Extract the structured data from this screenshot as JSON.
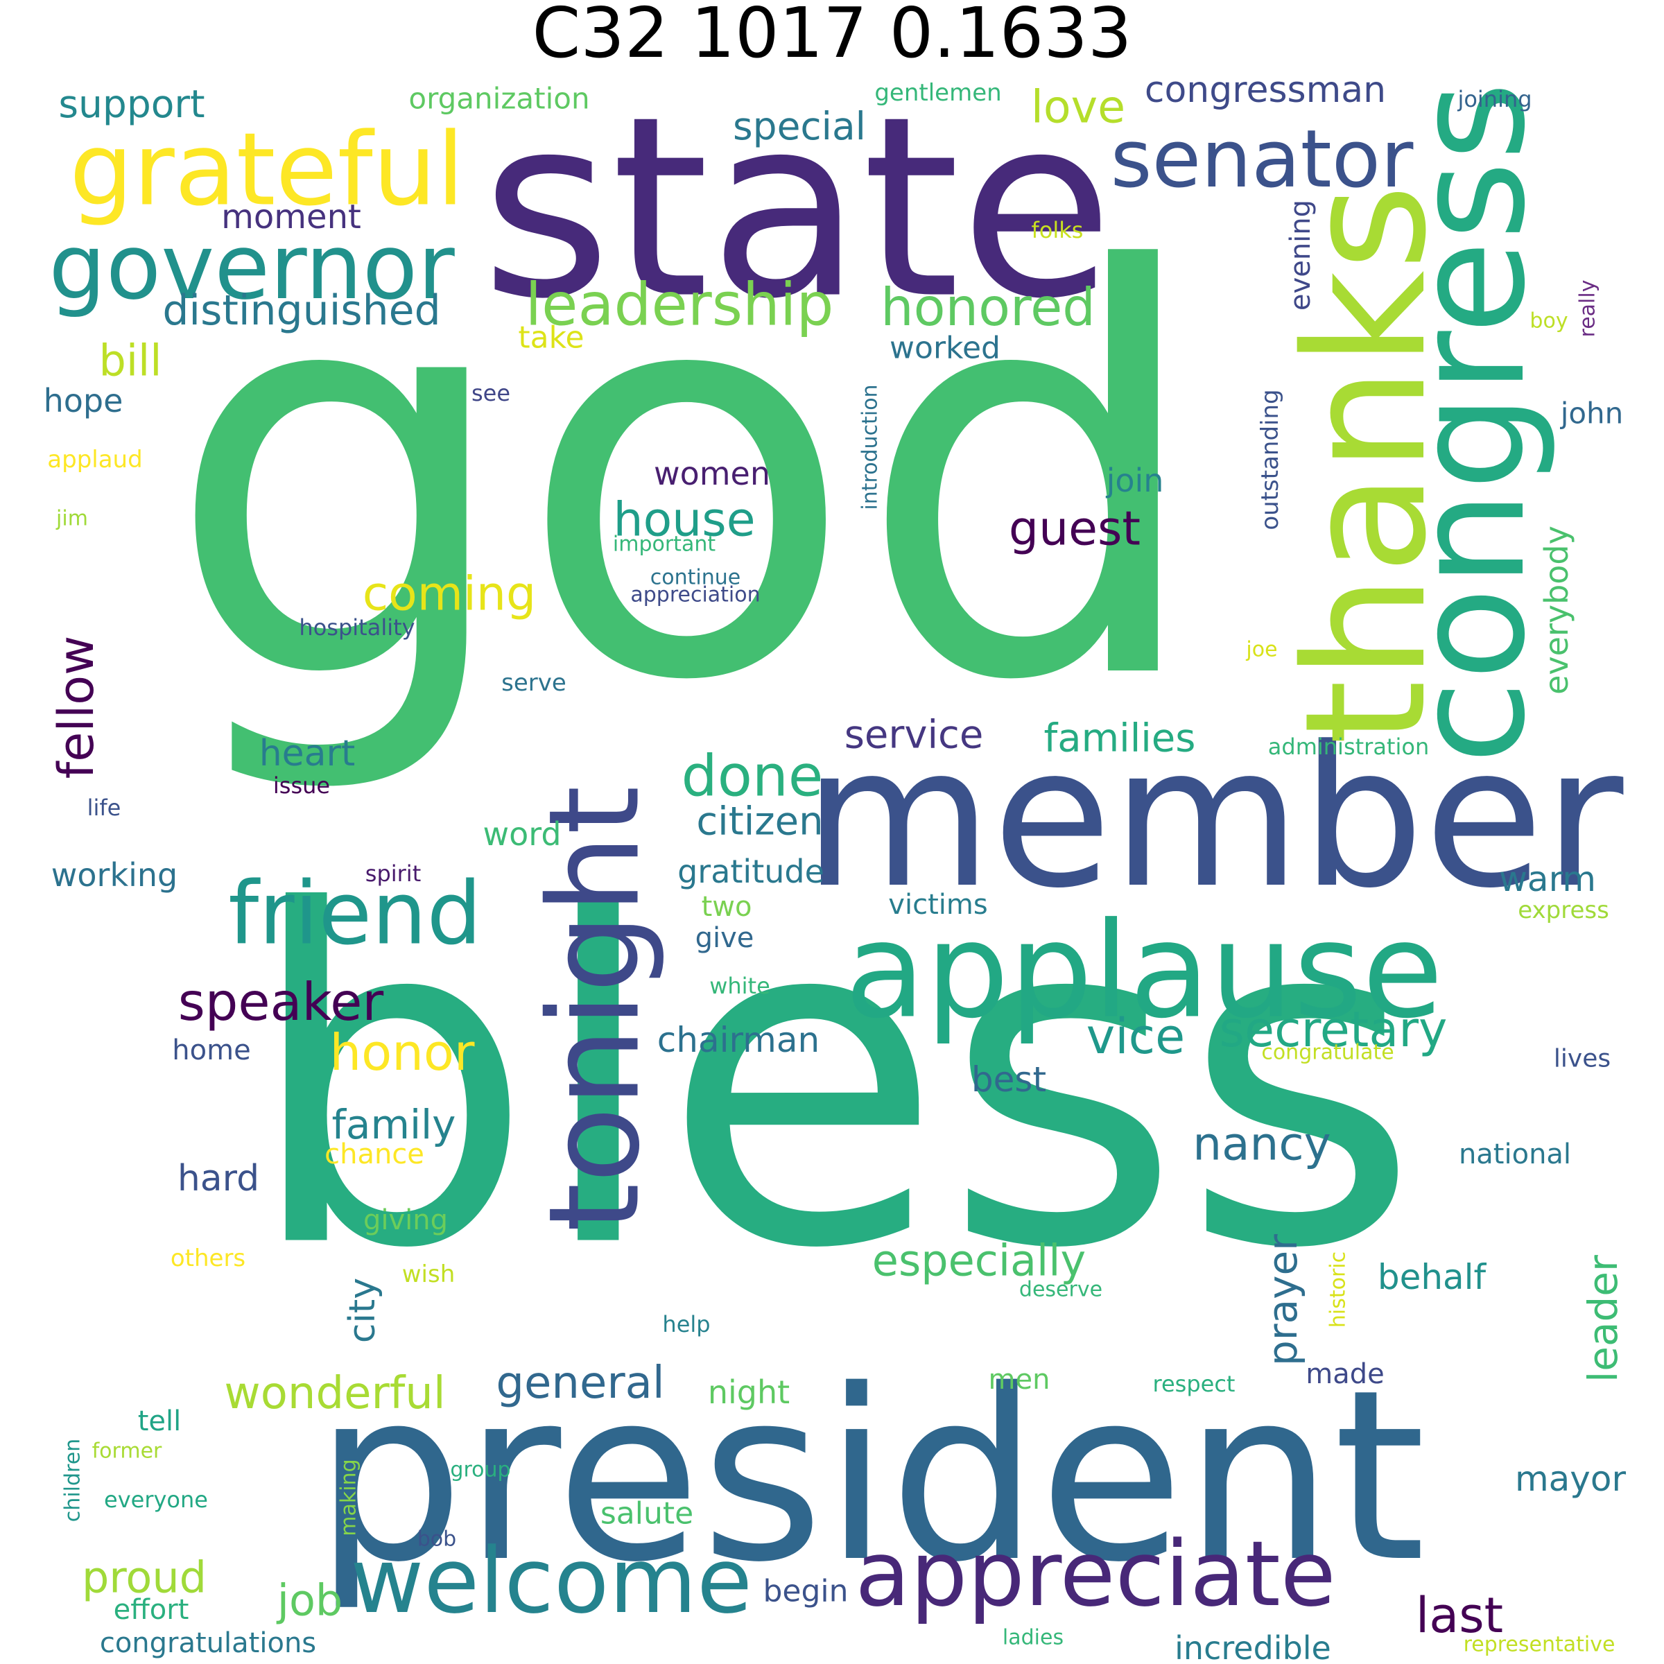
{
  "chart_data": {
    "type": "wordcloud",
    "title": "C32 1017 0.1633",
    "words": [
      {
        "text": "god",
        "color": "#43bf71"
      },
      {
        "text": "bless",
        "color": "#27ad81"
      },
      {
        "text": "state",
        "color": "#472a7a"
      },
      {
        "text": "president",
        "color": "#30678d"
      },
      {
        "text": "member",
        "color": "#3b528b"
      },
      {
        "text": "thanks",
        "color": "#a8db34"
      },
      {
        "text": "congress",
        "color": "#24aa83"
      },
      {
        "text": "applause",
        "color": "#22a884"
      },
      {
        "text": "tonight",
        "color": "#3e4989"
      },
      {
        "text": "grateful",
        "color": "#fde725"
      },
      {
        "text": "senator",
        "color": "#3b528b"
      },
      {
        "text": "governor",
        "color": "#21918c"
      },
      {
        "text": "friend",
        "color": "#1f968b"
      },
      {
        "text": "welcome",
        "color": "#25838e"
      },
      {
        "text": "appreciate",
        "color": "#482878"
      },
      {
        "text": "leadership",
        "color": "#7ad151"
      },
      {
        "text": "distinguished",
        "color": "#2a788e"
      },
      {
        "text": "honored",
        "color": "#5ec962"
      },
      {
        "text": "love",
        "color": "#b5de2b"
      },
      {
        "text": "congressman",
        "color": "#3e4a89"
      },
      {
        "text": "special",
        "color": "#2a788e"
      },
      {
        "text": "support",
        "color": "#23888e"
      },
      {
        "text": "organization",
        "color": "#5ec962"
      },
      {
        "text": "gentlemen",
        "color": "#35b779"
      },
      {
        "text": "joining",
        "color": "#33638d"
      },
      {
        "text": "moment",
        "color": "#46327e"
      },
      {
        "text": "folks",
        "color": "#c8e020"
      },
      {
        "text": "evening",
        "color": "#3f4889"
      },
      {
        "text": "bill",
        "color": "#bddf26"
      },
      {
        "text": "take",
        "color": "#dde318"
      },
      {
        "text": "worked",
        "color": "#2c738e"
      },
      {
        "text": "boy",
        "color": "#bddf26"
      },
      {
        "text": "really",
        "color": "#6a2c84"
      },
      {
        "text": "hope",
        "color": "#2e6e8e"
      },
      {
        "text": "see",
        "color": "#404688"
      },
      {
        "text": "introduction",
        "color": "#2c728e"
      },
      {
        "text": "outstanding",
        "color": "#3b528b"
      },
      {
        "text": "john",
        "color": "#31688e"
      },
      {
        "text": "applaud",
        "color": "#fde725"
      },
      {
        "text": "women",
        "color": "#481f70"
      },
      {
        "text": "join",
        "color": "#26828e"
      },
      {
        "text": "house",
        "color": "#1f9e89"
      },
      {
        "text": "guest",
        "color": "#440154"
      },
      {
        "text": "jim",
        "color": "#a0da39"
      },
      {
        "text": "important",
        "color": "#35b779"
      },
      {
        "text": "continue",
        "color": "#2c738e"
      },
      {
        "text": "appreciation",
        "color": "#3e4a89"
      },
      {
        "text": "coming",
        "color": "#e7e419"
      },
      {
        "text": "everybody",
        "color": "#4ac16d"
      },
      {
        "text": "hospitality",
        "color": "#3b528b"
      },
      {
        "text": "fellow",
        "color": "#440154"
      },
      {
        "text": "joe",
        "color": "#d8e219"
      },
      {
        "text": "serve",
        "color": "#2c738e"
      },
      {
        "text": "done",
        "color": "#2ab07f"
      },
      {
        "text": "service",
        "color": "#453781"
      },
      {
        "text": "families",
        "color": "#25ab82"
      },
      {
        "text": "administration",
        "color": "#35b779"
      },
      {
        "text": "heart",
        "color": "#287c8e"
      },
      {
        "text": "issue",
        "color": "#440154"
      },
      {
        "text": "life",
        "color": "#3b528b"
      },
      {
        "text": "citizen",
        "color": "#2a788e"
      },
      {
        "text": "word",
        "color": "#3cbb75"
      },
      {
        "text": "working",
        "color": "#2c728e"
      },
      {
        "text": "spirit",
        "color": "#481a6c"
      },
      {
        "text": "gratitude",
        "color": "#2a788e"
      },
      {
        "text": "warm",
        "color": "#2a788e"
      },
      {
        "text": "victims",
        "color": "#287d8e"
      },
      {
        "text": "two",
        "color": "#7ad151"
      },
      {
        "text": "express",
        "color": "#a0da39"
      },
      {
        "text": "give",
        "color": "#31688e"
      },
      {
        "text": "white",
        "color": "#35b779"
      },
      {
        "text": "speaker",
        "color": "#440154"
      },
      {
        "text": "secretary",
        "color": "#22a884"
      },
      {
        "text": "vice",
        "color": "#1f988b"
      },
      {
        "text": "honor",
        "color": "#fde725"
      },
      {
        "text": "chairman",
        "color": "#2c718e"
      },
      {
        "text": "home",
        "color": "#3b528b"
      },
      {
        "text": "congratulate",
        "color": "#c2df23"
      },
      {
        "text": "lives",
        "color": "#3b528b"
      },
      {
        "text": "best",
        "color": "#31688e"
      },
      {
        "text": "family",
        "color": "#25838e"
      },
      {
        "text": "nancy",
        "color": "#2c718e"
      },
      {
        "text": "chance",
        "color": "#fde725"
      },
      {
        "text": "national",
        "color": "#2a788e"
      },
      {
        "text": "hard",
        "color": "#3b528b"
      },
      {
        "text": "giving",
        "color": "#6ccd5a"
      },
      {
        "text": "others",
        "color": "#fde725"
      },
      {
        "text": "wish",
        "color": "#c2df23"
      },
      {
        "text": "especially",
        "color": "#4ac16d"
      },
      {
        "text": "behalf",
        "color": "#21918c"
      },
      {
        "text": "deserve",
        "color": "#35b779"
      },
      {
        "text": "historic",
        "color": "#d8e219"
      },
      {
        "text": "help",
        "color": "#26828e"
      },
      {
        "text": "city",
        "color": "#2a788e"
      },
      {
        "text": "prayer",
        "color": "#2e6e8e"
      },
      {
        "text": "leader",
        "color": "#3dbc74"
      },
      {
        "text": "general",
        "color": "#31688e"
      },
      {
        "text": "wonderful",
        "color": "#a8db34"
      },
      {
        "text": "night",
        "color": "#5ec962"
      },
      {
        "text": "men",
        "color": "#5ec962"
      },
      {
        "text": "made",
        "color": "#3e4989"
      },
      {
        "text": "respect",
        "color": "#2ab07f"
      },
      {
        "text": "tell",
        "color": "#20a486"
      },
      {
        "text": "former",
        "color": "#a8db34"
      },
      {
        "text": "children",
        "color": "#1f968b"
      },
      {
        "text": "group",
        "color": "#2ab07f"
      },
      {
        "text": "making",
        "color": "#86d549"
      },
      {
        "text": "salute",
        "color": "#4ac16d"
      },
      {
        "text": "mayor",
        "color": "#2a788e"
      },
      {
        "text": "everyone",
        "color": "#22a884"
      },
      {
        "text": "bob",
        "color": "#3b528b"
      },
      {
        "text": "proud",
        "color": "#a0da39"
      },
      {
        "text": "job",
        "color": "#5ec962"
      },
      {
        "text": "begin",
        "color": "#3b528b"
      },
      {
        "text": "last",
        "color": "#440154"
      },
      {
        "text": "effort",
        "color": "#2ab07f"
      },
      {
        "text": "congratulations",
        "color": "#2a788e"
      },
      {
        "text": "ladies",
        "color": "#35b779"
      },
      {
        "text": "incredible",
        "color": "#287c8e"
      },
      {
        "text": "representative",
        "color": "#c2df23"
      }
    ]
  }
}
